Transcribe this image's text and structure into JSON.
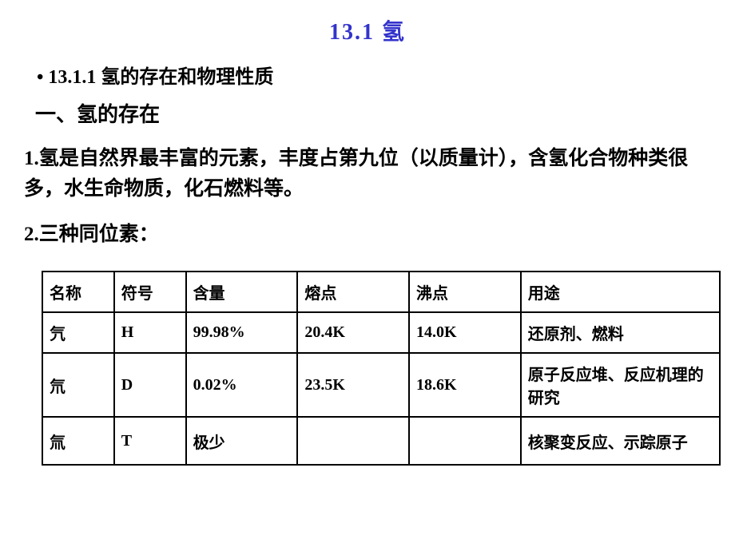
{
  "title": {
    "text": "13.1   氢",
    "color": "#3333cc"
  },
  "subtitle_bullet": "•  13.1.1  氢的存在和物理性质",
  "section_heading": "一、氢的存在",
  "paragraph_1": "1.氢是自然界最丰富的元素，丰度占第九位（以质量计），含氢化合物种类很多，水生命物质，化石燃料等。",
  "paragraph_2": "2.三种同位素：",
  "table": {
    "columns": [
      "名称",
      "符号",
      "含量",
      "熔点",
      "沸点",
      "用途"
    ],
    "rows": [
      [
        "氕",
        "H",
        "99.98%",
        "20.4K",
        "14.0K",
        "还原剂、燃料"
      ],
      [
        "氘",
        "D",
        "0.02%",
        "23.5K",
        "18.6K",
        "原子反应堆、反应机理的研究"
      ],
      [
        "氚",
        "T",
        "极少",
        "",
        "",
        "核聚变反应、示踪原子"
      ]
    ],
    "border_color": "#000000",
    "font_size": 20,
    "font_weight": "bold"
  },
  "colors": {
    "title_color": "#3333cc",
    "text_color": "#000000",
    "background": "#ffffff"
  }
}
